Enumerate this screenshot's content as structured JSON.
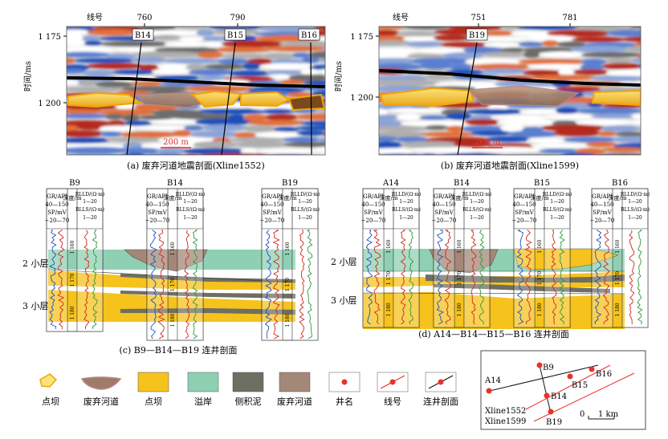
{
  "seismic": {
    "xline_label": "线号",
    "y_axis_label": "时间/ms",
    "tick_1175": "1 175",
    "tick_1200": "1 200",
    "scale_bar": "200 m",
    "panel_a": {
      "xlines": [
        "760",
        "790"
      ],
      "wells": [
        "B14",
        "B15",
        "B16"
      ],
      "caption": "(a) 废弃河道地震剖面(Xline1552)"
    },
    "panel_b": {
      "xlines": [
        "751",
        "781"
      ],
      "wells": [
        "B19"
      ],
      "caption": "(b) 废弃河道地震剖面(Xline1599)"
    }
  },
  "logs": {
    "gr_unit": "GR/API",
    "gr_range": "40—150",
    "sp_unit": "SP/mV",
    "sp_range": "−20—70",
    "depth_label": "深度/m",
    "rlld": "RLLD/(Ω·m)",
    "rlls": "RLLS/(Ω·m)",
    "res_range": "1—20",
    "depth_ticks": [
      "1 160",
      "1 170",
      "1 180"
    ],
    "layer_2": "2 小层",
    "layer_3": "3 小层"
  },
  "panel_c": {
    "wells": [
      "B9",
      "B14",
      "B19"
    ],
    "caption": "(c) B9—B14—B19 连井剖面"
  },
  "panel_d": {
    "wells": [
      "A14",
      "B14",
      "B15",
      "B16"
    ],
    "caption": "(d) A14—B14—B15—B16 连井剖面"
  },
  "legend": {
    "items": [
      {
        "label": "点坝",
        "color": "#f6c21c"
      },
      {
        "label": "废弃河道",
        "color": "#a07b67"
      },
      {
        "label": "点坝",
        "color": "#f6c21c"
      },
      {
        "label": "溢岸",
        "color": "#8fd0b2"
      },
      {
        "label": "侧积泥",
        "color": "#6e6e62"
      },
      {
        "label": "废弃河道",
        "color": "#a38877"
      },
      {
        "label": "井名",
        "color": "#e8322a"
      },
      {
        "label": "线号",
        "color": "#e8322a"
      },
      {
        "label": "连井剖面",
        "color": "#111111"
      }
    ]
  },
  "map": {
    "wells": [
      "A14",
      "B9",
      "B14",
      "B15",
      "B16",
      "B19"
    ],
    "xline1": "Xline1552",
    "xline2": "Xline1599",
    "scale_0": "0",
    "scale_1": "1 km"
  }
}
